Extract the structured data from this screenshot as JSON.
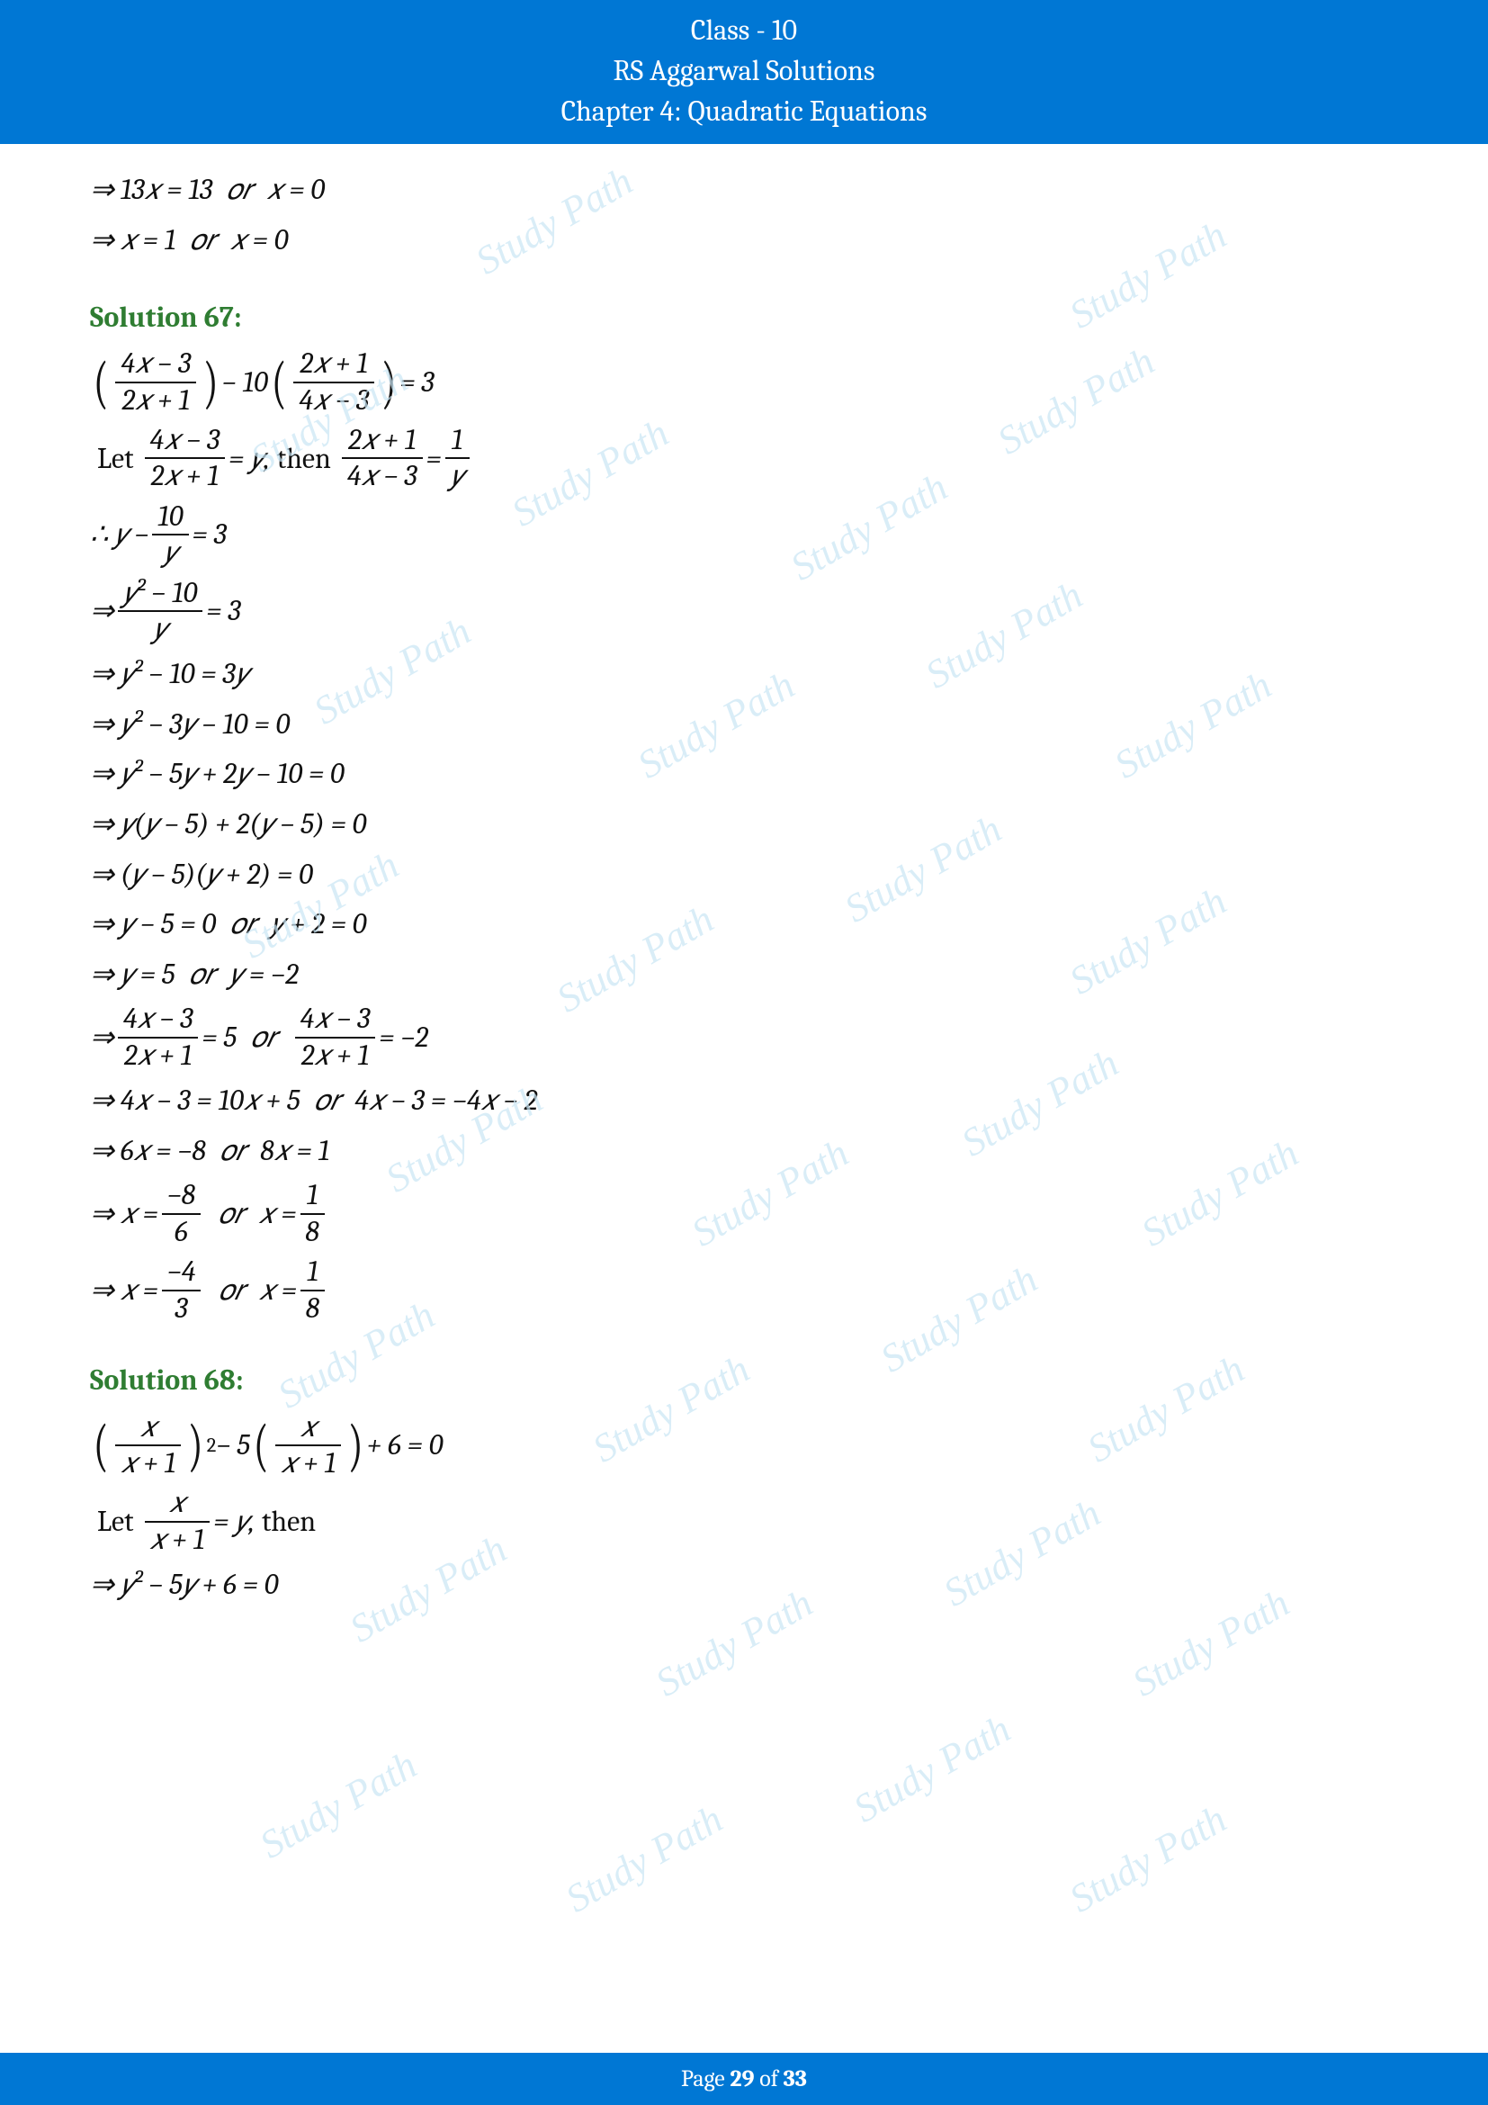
{
  "header": {
    "line1": "Class - 10",
    "line2": "RS Aggarwal Solutions",
    "line3": "Chapter 4: Quadratic Equations"
  },
  "footer": {
    "prefix": "Page ",
    "current": "29",
    "middle": " of ",
    "total": "33"
  },
  "colors": {
    "header_bg": "#0077d4",
    "header_text": "#ffffff",
    "solution_title": "#2f7d32",
    "body_text": "#111111",
    "watermark": "#c9e6f5"
  },
  "watermark_text": "Study Path",
  "lines": {
    "l01_a": "⇒ 13𝑥 = 13",
    "l01_or": "𝑜𝑟",
    "l01_b": "𝑥 = 0",
    "l02_a": "⇒ 𝑥 = 1",
    "l02_or": "𝑜𝑟",
    "l02_b": "𝑥 = 0",
    "sol67": "Solution 67:",
    "l03_num1": "4𝑥 − 3",
    "l03_den1": "2𝑥 + 1",
    "l03_mid": " − 10 ",
    "l03_num2": "2𝑥 + 1",
    "l03_den2": "4𝑥 − 3",
    "l03_eq": " = 3",
    "l04_let": "Let ",
    "l04_num1": "4𝑥 − 3",
    "l04_den1": "2𝑥 + 1",
    "l04_eqy": " = 𝑦,",
    "l04_then": " then ",
    "l04_num2": "2𝑥 + 1",
    "l04_den2": "4𝑥 − 3",
    "l04_eq": " = ",
    "l04_num3": "1",
    "l04_den3": "𝑦",
    "l05_therefore": "∴ 𝑦 − ",
    "l05_num": "10",
    "l05_den": "𝑦",
    "l05_eq": " = 3",
    "l06_arrow": "⇒ ",
    "l06_num": "𝑦² − 10",
    "l06_den": "𝑦",
    "l06_eq": " = 3",
    "l07": "⇒ 𝑦² − 10 = 3𝑦",
    "l08": "⇒ 𝑦² − 3𝑦 − 10 = 0",
    "l09": "⇒ 𝑦² − 5𝑦 + 2𝑦 − 10 = 0",
    "l10": "⇒ 𝑦(𝑦 − 5) + 2(𝑦 − 5) = 0",
    "l11": "⇒ (𝑦 − 5)(𝑦 + 2) = 0",
    "l12_a": "⇒ 𝑦 − 5 = 0",
    "l12_or": "𝑜𝑟",
    "l12_b": "𝑦 + 2 = 0",
    "l13_a": "⇒ 𝑦 = 5",
    "l13_or": "𝑜𝑟",
    "l13_b": "𝑦 = −2",
    "l14_arrow": "⇒ ",
    "l14_num1": "4𝑥 − 3",
    "l14_den1": "2𝑥 + 1",
    "l14_eq1": " = 5",
    "l14_or": "𝑜𝑟",
    "l14_num2": "4𝑥 − 3",
    "l14_den2": "2𝑥 + 1",
    "l14_eq2": " = −2",
    "l15_a": "⇒ 4𝑥 − 3 = 10𝑥 + 5",
    "l15_or": "𝑜𝑟",
    "l15_b": "4𝑥 − 3 = −4𝑥 − 2",
    "l16_a": "⇒ 6𝑥 = −8",
    "l16_or": "𝑜𝑟",
    "l16_b": "8𝑥 = 1",
    "l17_arrow": "⇒ 𝑥 = ",
    "l17_num1": "−8",
    "l17_den1": "6",
    "l17_or": "𝑜𝑟",
    "l17_mid": "𝑥 = ",
    "l17_num2": "1",
    "l17_den2": "8",
    "l18_arrow": "⇒ 𝑥 = ",
    "l18_num1": "−4",
    "l18_den1": "3",
    "l18_or": "𝑜𝑟",
    "l18_mid": "𝑥 = ",
    "l18_num2": "1",
    "l18_den2": "8",
    "sol68": "Solution 68:",
    "l19_num1": "𝑥",
    "l19_den1": "𝑥 + 1",
    "l19_sup": "2",
    "l19_mid": " − 5 ",
    "l19_num2": "𝑥",
    "l19_den2": "𝑥 + 1",
    "l19_eq": " + 6 = 0",
    "l20_let": "Let ",
    "l20_num": "𝑥",
    "l20_den": "𝑥 + 1",
    "l20_eqy": " = 𝑦,",
    "l20_then": " then",
    "l21": "⇒ 𝑦² − 5𝑦 + 6 = 0"
  }
}
